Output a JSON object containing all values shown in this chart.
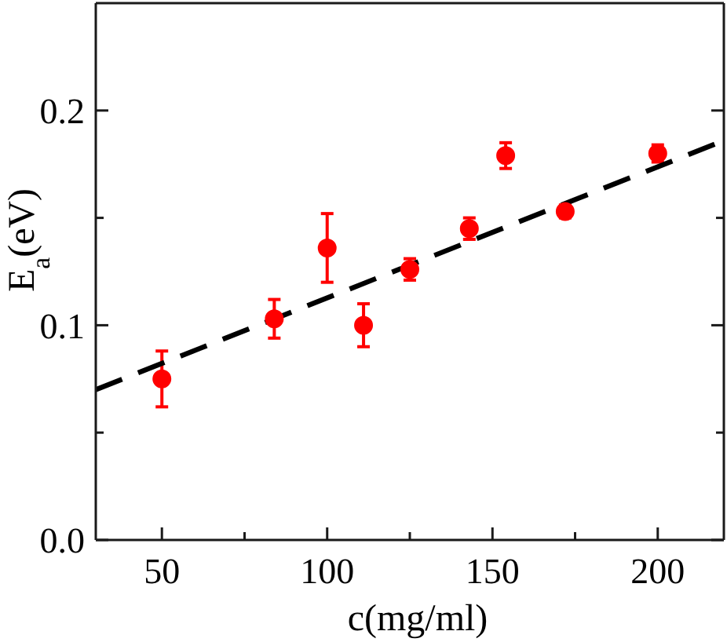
{
  "chart_data": {
    "type": "scatter",
    "xlabel": "c(mg/ml)",
    "ylabel": "E$_{a}$(eV)",
    "xlim": [
      30,
      220
    ],
    "xticks": [
      50,
      {
        "value": 75,
        "label": null
      },
      100,
      {
        "value": 125,
        "label": null
      },
      150,
      {
        "value": 175,
        "label": null
      },
      200
    ],
    "ylim": [
      0,
      0.25
    ],
    "yticks": [
      {
        "value": 0,
        "label": "0.0"
      },
      {
        "value": 0.05,
        "label": null
      },
      0.1,
      {
        "value": 0.15,
        "label": null
      },
      0.2
    ],
    "series": [
      {
        "color": "#ff0000",
        "marker": "circle",
        "x": [
          50,
          84,
          100,
          111,
          125,
          143,
          154,
          172,
          200
        ],
        "values": [
          0.075,
          0.103,
          0.136,
          0.1,
          0.126,
          0.145,
          0.179,
          0.153,
          0.18
        ],
        "errors": [
          0.013,
          0.009,
          0.016,
          0.01,
          0.005,
          0.005,
          0.006,
          0.003,
          0.004
        ]
      },
      {
        "type": "line",
        "color": "#000000",
        "line_style": "dashed",
        "marker": "none",
        "x": [
          30,
          220
        ],
        "values": [
          0.07,
          0.186
        ]
      }
    ]
  }
}
